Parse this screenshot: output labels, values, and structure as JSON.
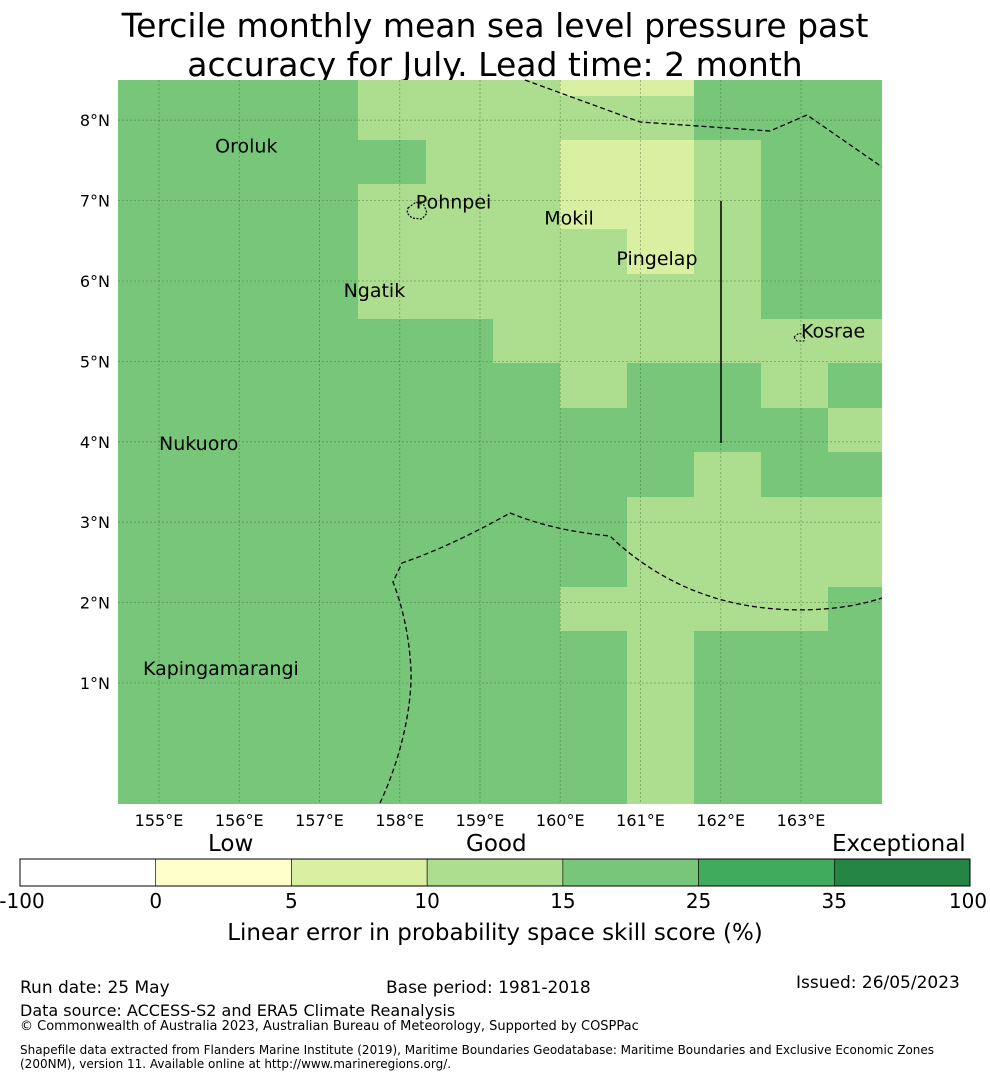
{
  "title": {
    "line1": "Tercile monthly mean sea level pressure past",
    "line2": "accuracy for July. Lead time: 2 month"
  },
  "map": {
    "lon_labels": [
      "155°E",
      "156°E",
      "157°E",
      "158°E",
      "159°E",
      "160°E",
      "161°E",
      "162°E",
      "163°E"
    ],
    "lat_labels": [
      "1°N",
      "2°N",
      "3°N",
      "4°N",
      "5°N",
      "6°N",
      "7°N",
      "8°N"
    ],
    "lon_values": [
      155,
      156,
      157,
      158,
      159,
      160,
      161,
      162,
      163
    ],
    "lat_values": [
      1,
      2,
      3,
      4,
      5,
      6,
      7,
      8
    ],
    "places": [
      {
        "name": "Oroluk",
        "lon": 155.7,
        "lat": 7.6
      },
      {
        "name": "Pohnpei",
        "lon": 158.2,
        "lat": 6.9
      },
      {
        "name": "Mokil",
        "lon": 159.8,
        "lat": 6.7
      },
      {
        "name": "Pingelap",
        "lon": 160.7,
        "lat": 6.2
      },
      {
        "name": "Ngatik",
        "lon": 157.3,
        "lat": 5.8
      },
      {
        "name": "Kosrae",
        "lon": 163.0,
        "lat": 5.3
      },
      {
        "name": "Nukuoro",
        "lon": 155.0,
        "lat": 3.9
      },
      {
        "name": "Kapingamarangi",
        "lon": 154.8,
        "lat": 1.1
      }
    ],
    "skill_classes": {
      "good_light": "#d9f0a3",
      "good_mid": "#addd8e",
      "good_high": "#78c679"
    }
  },
  "colorbar": {
    "category_labels": [
      "Low",
      "Good",
      "Exceptional"
    ],
    "tick_labels": [
      "-100",
      "0",
      "5",
      "10",
      "15",
      "25",
      "35",
      "100"
    ],
    "colors": [
      "#ffffff",
      "#ffffcc",
      "#d9f0a3",
      "#addd8e",
      "#78c679",
      "#41ab5d",
      "#238443"
    ],
    "axis_label": "Linear error in probability space skill score (%)"
  },
  "footer": {
    "run_date": "Run date: 25 May",
    "base_period": "Base period: 1981-2018",
    "issued": "Issued: 26/05/2023",
    "data_source": "Data source: ACCESS-S2 and ERA5 Climate Reanalysis",
    "copyright": "© Commonwealth of Australia 2023, Australian Bureau of Meteorology, Supported by COSPPac",
    "shapefile_line1": "Shapefile data extracted from Flanders Marine Institute (2019), Maritime Boundaries Geodatabase: Maritime Boundaries and Exclusive Economic Zones",
    "shapefile_line2": "(200NM), version 11. Available online at http://www.marineregions.org/."
  }
}
